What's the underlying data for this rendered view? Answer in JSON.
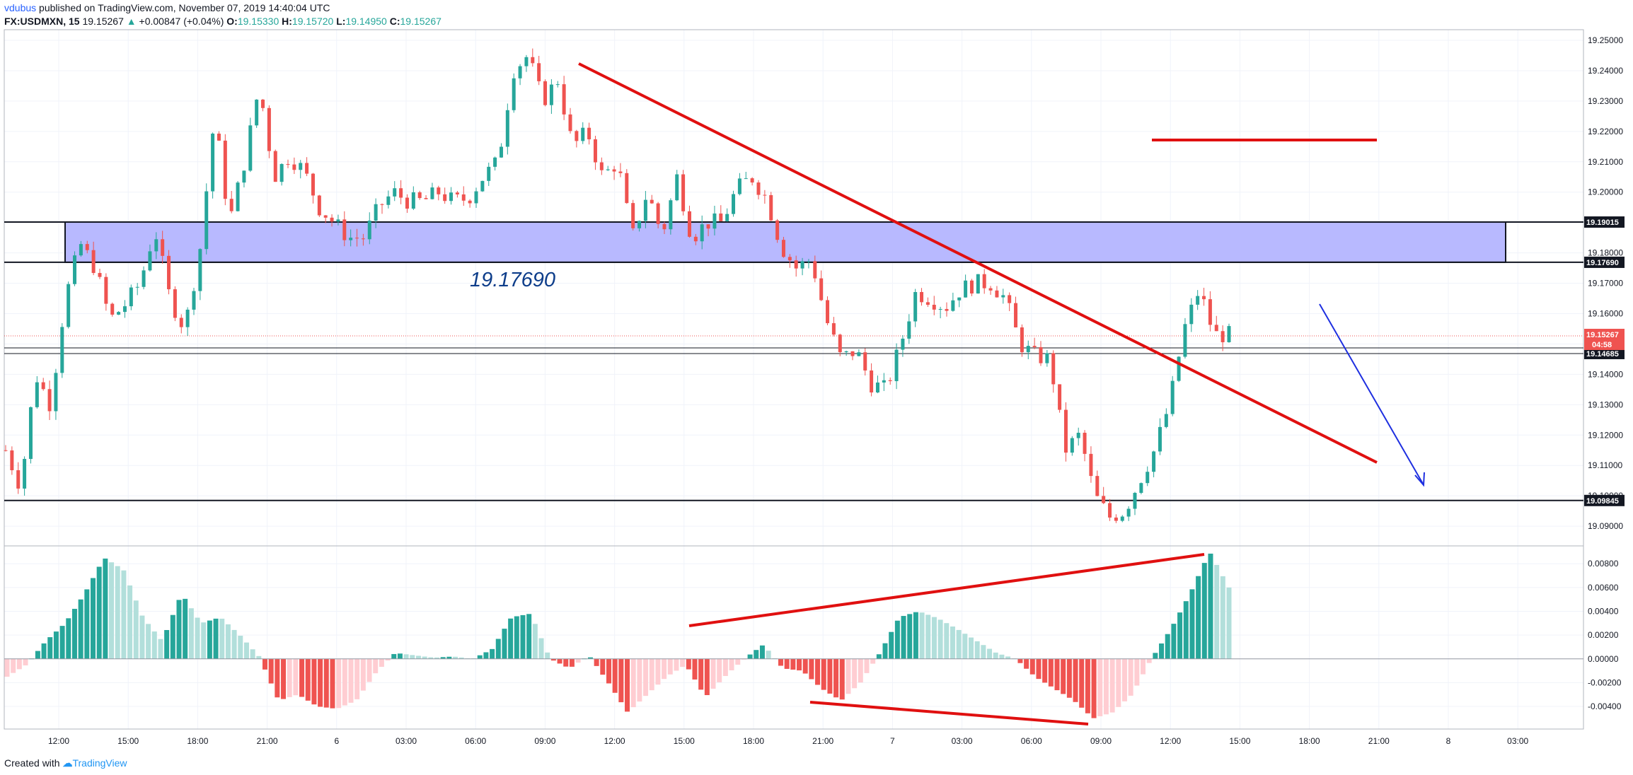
{
  "header": {
    "author": "vdubus",
    "published": "published on TradingView.com, November 07, 2019 14:40:04 UTC",
    "symbol": "FX:USDMXN, 15",
    "last": "19.15267",
    "change": "+0.00847 (+0.04%)",
    "o_label": "O:",
    "o": "19.15330",
    "h_label": "H:",
    "h": "19.15720",
    "l_label": "L:",
    "l": "19.14950",
    "c_label": "C:",
    "c": "19.15267"
  },
  "footer": {
    "created": "Created with",
    "brand": "TradingView"
  },
  "colors": {
    "up": "#26a69a",
    "down": "#ef5350",
    "up_fade": "#b2dfdb",
    "down_fade": "#ffcdd2",
    "zone": "#b8b9ff",
    "drawing_red": "#e01010",
    "arrow_blue": "#1e2fe0"
  },
  "chart_data": [
    {
      "type": "candlestick",
      "title": "",
      "symbol": "FX:USDMXN",
      "interval": "15",
      "x_ticks": [
        "12:00",
        "15:00",
        "18:00",
        "21:00",
        "6",
        "03:00",
        "06:00",
        "09:00",
        "12:00",
        "15:00",
        "18:00",
        "21:00",
        "7",
        "03:00",
        "06:00",
        "09:00",
        "12:00",
        "15:00",
        "18:00",
        "21:00",
        "8",
        "03:00"
      ],
      "y_ticks": [
        "19.25000",
        "19.24000",
        "19.23000",
        "19.22000",
        "19.21000",
        "19.20000",
        "19.19000",
        "19.18000",
        "19.17000",
        "19.16000",
        "19.15000",
        "19.14000",
        "19.13000",
        "19.12000",
        "19.11000",
        "19.10000",
        "19.09000"
      ],
      "ylim": [
        19.0835,
        19.2535
      ],
      "key_levels": [
        {
          "label": "19.19015",
          "value": 19.19015
        },
        {
          "label": "19.17690",
          "value": 19.1769
        },
        {
          "label": "19.14685",
          "value": 19.14685
        },
        {
          "label": "19.09845",
          "value": 19.09845
        }
      ],
      "last_price": {
        "label": "19.15267",
        "value": 19.15267,
        "countdown": "04:58"
      },
      "zone_label": "19.17690",
      "zone": [
        19.1769,
        19.19015
      ],
      "price_path": [
        19.115,
        19.103,
        19.14,
        19.13,
        19.165,
        19.183,
        19.175,
        19.158,
        19.163,
        19.17,
        19.188,
        19.165,
        19.155,
        19.18,
        19.225,
        19.19,
        19.21,
        19.235,
        19.205,
        19.212,
        19.207,
        19.195,
        19.19,
        19.185,
        19.185,
        19.195,
        19.2,
        19.197,
        19.197,
        19.2,
        19.197,
        19.198,
        19.205,
        19.21,
        19.24,
        19.245,
        19.23,
        19.237,
        19.215,
        19.22,
        19.205,
        19.21,
        19.185,
        19.2,
        19.186,
        19.205,
        19.185,
        19.19,
        19.19,
        19.201,
        19.205,
        19.198,
        19.182,
        19.175,
        19.178,
        19.158,
        19.145,
        19.148,
        19.137,
        19.135,
        19.15,
        19.167,
        19.165,
        19.162,
        19.168,
        19.17,
        19.17,
        19.165,
        19.15,
        19.146,
        19.145,
        19.115,
        19.12,
        19.1,
        19.093,
        19.095,
        19.105,
        19.115,
        19.13,
        19.155,
        19.168,
        19.153,
        19.153
      ]
    },
    {
      "type": "bar",
      "title": "",
      "y_ticks": [
        "0.00800",
        "0.00600",
        "0.00400",
        "0.00200",
        "0.00000",
        "-0.00200",
        "-0.00400"
      ],
      "ylim": [
        -0.0059,
        0.0095
      ],
      "hist_path": [
        -0.0015,
        -0.0005,
        0.0015,
        0.003,
        0.0055,
        0.0085,
        0.0075,
        0.0035,
        0.0015,
        0.0055,
        0.003,
        0.0035,
        0.002,
        0.0002,
        -0.0035,
        -0.003,
        -0.004,
        -0.0042,
        -0.0035,
        -0.0012,
        0.0005,
        0.0003,
        0.0001,
        0.0002,
        0.0,
        0.0008,
        0.0035,
        0.0038,
        0.0,
        -0.0008,
        0.0003,
        -0.002,
        -0.0045,
        -0.003,
        -0.0015,
        -0.0005,
        -0.0032,
        -0.0015,
        0.0,
        0.0012,
        -0.0008,
        -0.001,
        -0.0025,
        -0.0035,
        -0.002,
        0.0005,
        0.0035,
        0.004,
        0.0034,
        0.0025,
        0.0015,
        0.0005,
        0.0,
        -0.0015,
        -0.0025,
        -0.0035,
        -0.005,
        -0.0045,
        -0.003,
        0.0,
        0.0025,
        0.0055,
        0.009,
        0.006
      ]
    }
  ]
}
